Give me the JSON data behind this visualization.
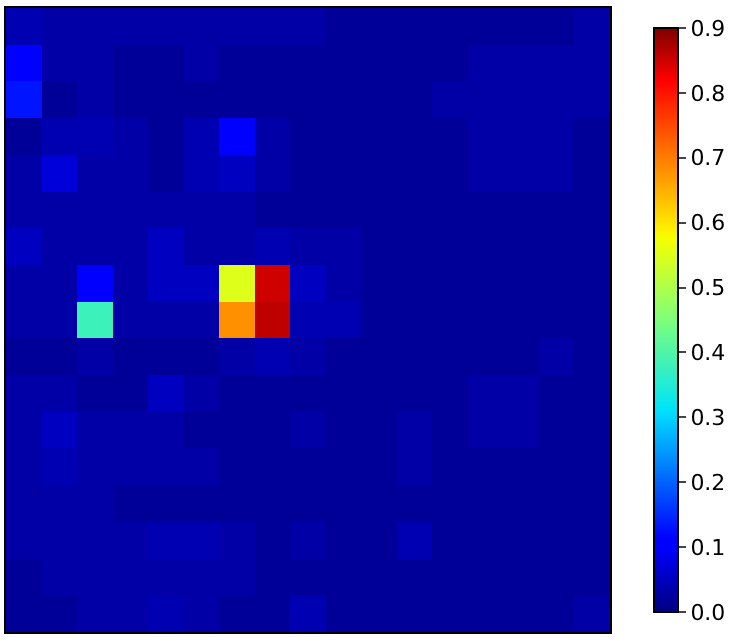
{
  "chart_data": {
    "type": "heatmap",
    "categories": [
      null,
      null,
      null,
      null,
      null,
      null,
      null,
      null,
      null,
      null,
      null,
      null,
      null,
      null,
      null,
      null,
      null
    ],
    "y_categories": [
      null,
      null,
      null,
      null,
      null,
      null,
      null,
      null,
      null,
      null,
      null,
      null,
      null,
      null,
      null,
      null,
      null
    ],
    "cells": [
      [
        0.04,
        0.03,
        0.03,
        0.03,
        0.03,
        0.03,
        0.03,
        0.03,
        0.03,
        0.02,
        0.02,
        0.02,
        0.02,
        0.02,
        0.02,
        0.02,
        0.03
      ],
      [
        0.1,
        0.03,
        0.03,
        0.02,
        0.02,
        0.03,
        0.02,
        0.02,
        0.02,
        0.02,
        0.02,
        0.02,
        0.02,
        0.03,
        0.03,
        0.03,
        0.03
      ],
      [
        0.13,
        0.02,
        0.03,
        0.02,
        0.02,
        0.02,
        0.02,
        0.02,
        0.02,
        0.02,
        0.02,
        0.02,
        0.03,
        0.03,
        0.03,
        0.03,
        0.03
      ],
      [
        0.02,
        0.04,
        0.04,
        0.03,
        0.02,
        0.04,
        0.1,
        0.03,
        0.02,
        0.02,
        0.02,
        0.02,
        0.02,
        0.03,
        0.03,
        0.03,
        0.02
      ],
      [
        0.03,
        0.07,
        0.03,
        0.03,
        0.02,
        0.04,
        0.05,
        0.03,
        0.02,
        0.02,
        0.02,
        0.02,
        0.02,
        0.03,
        0.03,
        0.03,
        0.02
      ],
      [
        0.03,
        0.03,
        0.03,
        0.03,
        0.03,
        0.03,
        0.03,
        0.02,
        0.02,
        0.02,
        0.02,
        0.02,
        0.02,
        0.02,
        0.02,
        0.02,
        0.02
      ],
      [
        0.05,
        0.03,
        0.03,
        0.03,
        0.05,
        0.03,
        0.03,
        0.04,
        0.03,
        0.03,
        0.02,
        0.02,
        0.02,
        0.02,
        0.02,
        0.02,
        0.02
      ],
      [
        0.03,
        0.03,
        0.1,
        0.03,
        0.05,
        0.05,
        0.55,
        0.85,
        0.05,
        0.03,
        0.02,
        0.02,
        0.02,
        0.02,
        0.02,
        0.02,
        0.02
      ],
      [
        0.03,
        0.03,
        0.38,
        0.03,
        0.03,
        0.03,
        0.68,
        0.86,
        0.04,
        0.04,
        0.02,
        0.02,
        0.02,
        0.02,
        0.02,
        0.02,
        0.02
      ],
      [
        0.02,
        0.02,
        0.03,
        0.02,
        0.02,
        0.02,
        0.03,
        0.04,
        0.03,
        0.02,
        0.02,
        0.02,
        0.02,
        0.02,
        0.02,
        0.03,
        0.02
      ],
      [
        0.03,
        0.03,
        0.02,
        0.02,
        0.05,
        0.03,
        0.02,
        0.02,
        0.02,
        0.02,
        0.02,
        0.02,
        0.02,
        0.03,
        0.03,
        0.02,
        0.02
      ],
      [
        0.03,
        0.05,
        0.03,
        0.03,
        0.03,
        0.02,
        0.02,
        0.02,
        0.03,
        0.02,
        0.02,
        0.03,
        0.02,
        0.03,
        0.03,
        0.02,
        0.02
      ],
      [
        0.03,
        0.04,
        0.03,
        0.03,
        0.03,
        0.03,
        0.02,
        0.02,
        0.02,
        0.02,
        0.02,
        0.03,
        0.02,
        0.02,
        0.02,
        0.02,
        0.02
      ],
      [
        0.03,
        0.03,
        0.03,
        0.02,
        0.02,
        0.02,
        0.02,
        0.02,
        0.02,
        0.02,
        0.02,
        0.02,
        0.02,
        0.02,
        0.02,
        0.02,
        0.02
      ],
      [
        0.03,
        0.03,
        0.03,
        0.03,
        0.04,
        0.04,
        0.03,
        0.02,
        0.03,
        0.02,
        0.02,
        0.04,
        0.02,
        0.02,
        0.02,
        0.02,
        0.02
      ],
      [
        0.02,
        0.03,
        0.03,
        0.03,
        0.03,
        0.03,
        0.03,
        0.02,
        0.02,
        0.02,
        0.02,
        0.02,
        0.02,
        0.02,
        0.02,
        0.02,
        0.02
      ],
      [
        0.02,
        0.02,
        0.03,
        0.03,
        0.04,
        0.03,
        0.02,
        0.02,
        0.04,
        0.02,
        0.02,
        0.02,
        0.02,
        0.02,
        0.02,
        0.02,
        0.03
      ]
    ],
    "clim": [
      0.0,
      0.9
    ],
    "cticks": [
      {
        "value": 0.0,
        "label": "0.0"
      },
      0.1,
      0.2,
      0.3,
      0.4,
      0.5,
      0.6,
      0.7,
      0.8,
      0.9
    ]
  }
}
